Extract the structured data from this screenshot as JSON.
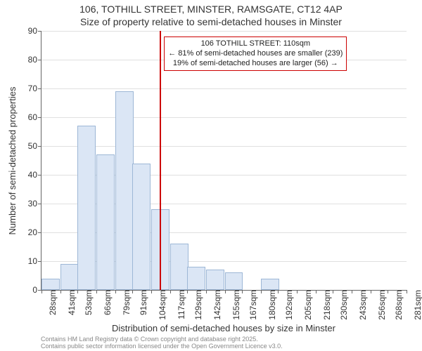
{
  "title": {
    "line1": "106, TOTHILL STREET, MINSTER, RAMSGATE, CT12 4AP",
    "line2": "Size of property relative to semi-detached houses in Minster"
  },
  "chart": {
    "type": "histogram",
    "background_color": "#ffffff",
    "grid_color": "#e0e0e0",
    "axis_color": "#666666",
    "bar_fill": "#dbe6f5",
    "bar_border": "#9db7d6",
    "refline_color": "#cc0000",
    "annot_border": "#cc0000",
    "font_family": "Arial",
    "title_fontsize": 14,
    "label_fontsize": 13,
    "tick_fontsize": 12,
    "annot_fontsize": 11,
    "ylim": [
      0,
      90
    ],
    "ytick_step": 10,
    "xticks": [
      28,
      41,
      53,
      66,
      79,
      91,
      104,
      117,
      129,
      142,
      155,
      167,
      180,
      192,
      205,
      218,
      230,
      243,
      256,
      268,
      281
    ],
    "xtick_suffix": "sqm",
    "bar_width_units": 12.65,
    "bars": [
      {
        "x": 28,
        "y": 4
      },
      {
        "x": 41,
        "y": 9
      },
      {
        "x": 53,
        "y": 57
      },
      {
        "x": 66,
        "y": 47
      },
      {
        "x": 79,
        "y": 69
      },
      {
        "x": 91,
        "y": 44
      },
      {
        "x": 104,
        "y": 28
      },
      {
        "x": 117,
        "y": 16
      },
      {
        "x": 129,
        "y": 8
      },
      {
        "x": 142,
        "y": 7
      },
      {
        "x": 155,
        "y": 6
      },
      {
        "x": 167,
        "y": 0
      },
      {
        "x": 180,
        "y": 4
      },
      {
        "x": 192,
        "y": 0
      },
      {
        "x": 205,
        "y": 0
      },
      {
        "x": 218,
        "y": 0
      },
      {
        "x": 230,
        "y": 0
      },
      {
        "x": 243,
        "y": 0
      },
      {
        "x": 256,
        "y": 0
      },
      {
        "x": 268,
        "y": 0
      }
    ],
    "refline_x": 110,
    "annot": {
      "line1": "106 TOTHILL STREET: 110sqm",
      "line2": "← 81% of semi-detached houses are smaller (239)",
      "line3": "19% of semi-detached houses are larger (56) →"
    },
    "ylabel": "Number of semi-detached properties",
    "xlabel": "Distribution of semi-detached houses by size in Minster"
  },
  "credits": {
    "line1": "Contains HM Land Registry data © Crown copyright and database right 2025.",
    "line2": "Contains public sector information licensed under the Open Government Licence v3.0."
  }
}
